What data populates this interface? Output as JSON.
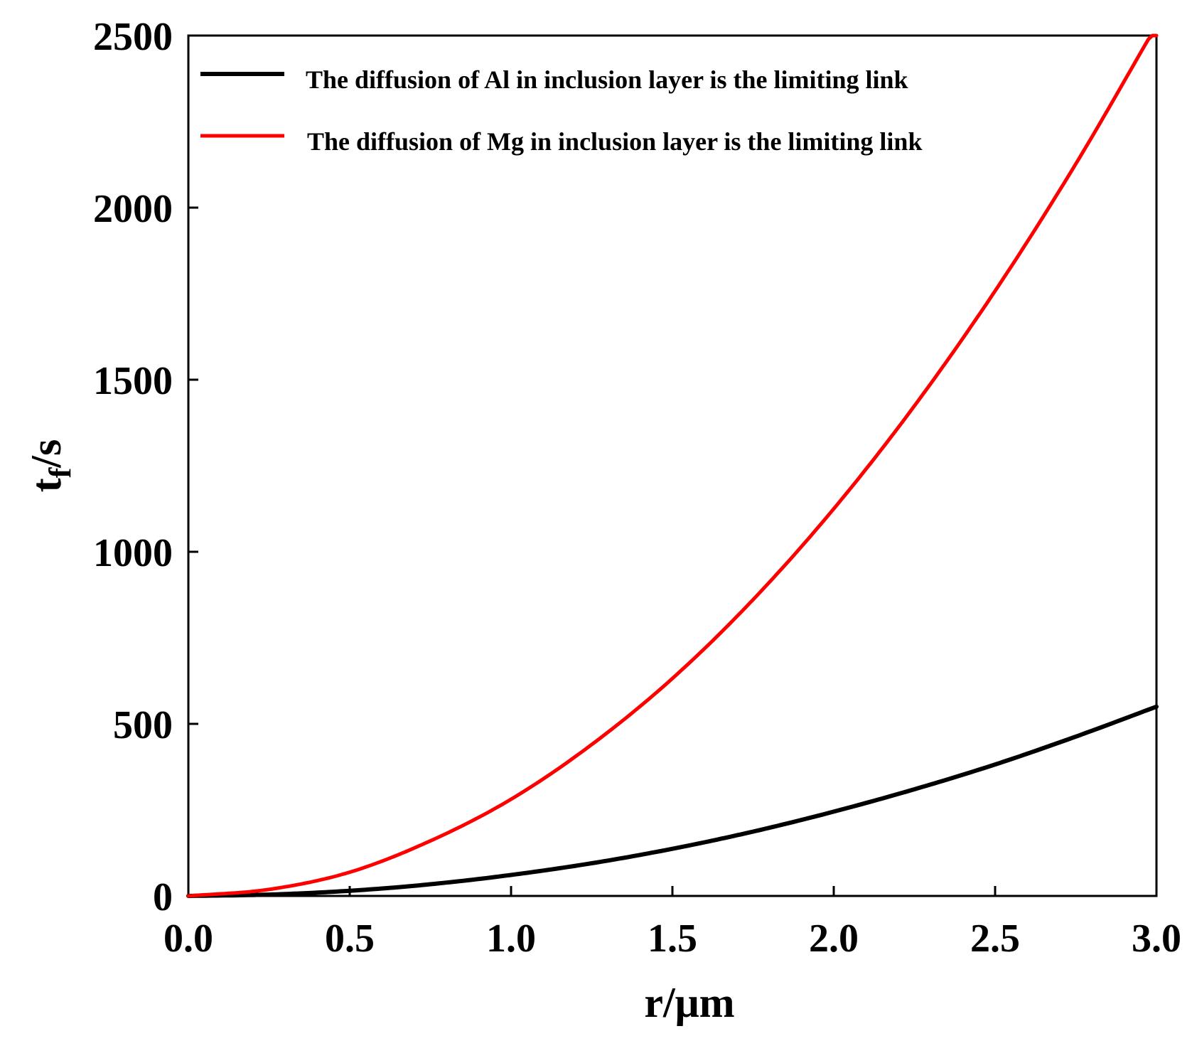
{
  "chart_data": {
    "type": "line",
    "title": "",
    "xlabel": "r/μm",
    "ylabel": {
      "main": "t",
      "sub": "f",
      "unit": "/s"
    },
    "xlim": [
      0,
      3
    ],
    "ylim": [
      0,
      2500
    ],
    "xticks": [
      0.0,
      0.5,
      1.0,
      1.5,
      2.0,
      2.5,
      3.0
    ],
    "xtick_labels": [
      "0.0",
      "0.5",
      "1.0",
      "1.5",
      "2.0",
      "2.5",
      "3.0"
    ],
    "yticks": [
      0,
      500,
      1000,
      1500,
      2000,
      2500
    ],
    "ytick_labels": [
      "0",
      "500",
      "1000",
      "1500",
      "2000",
      "2500"
    ],
    "grid": false,
    "legend_position": "top",
    "series": [
      {
        "name": "The diffusion of Al in inclusion layer is the limiting link",
        "color": "#000000",
        "x": [
          0,
          0.25,
          0.5,
          0.75,
          1.0,
          1.25,
          1.5,
          1.75,
          2.0,
          2.25,
          2.5,
          2.75,
          3.0
        ],
        "y": [
          0,
          4,
          15,
          34,
          61,
          95,
          137,
          187,
          245,
          310,
          382,
          463,
          550
        ]
      },
      {
        "name": "The diffusion of Mg in inclusion layer is the limiting link",
        "color": "#ff0000",
        "x": [
          0,
          0.25,
          0.5,
          0.75,
          1.0,
          1.25,
          1.5,
          1.75,
          2.0,
          2.25,
          2.5,
          2.75,
          3.0
        ],
        "y": [
          0,
          19,
          69,
          160,
          281,
          440,
          632,
          861,
          1125,
          1424,
          1758,
          2127,
          2530
        ]
      }
    ]
  }
}
